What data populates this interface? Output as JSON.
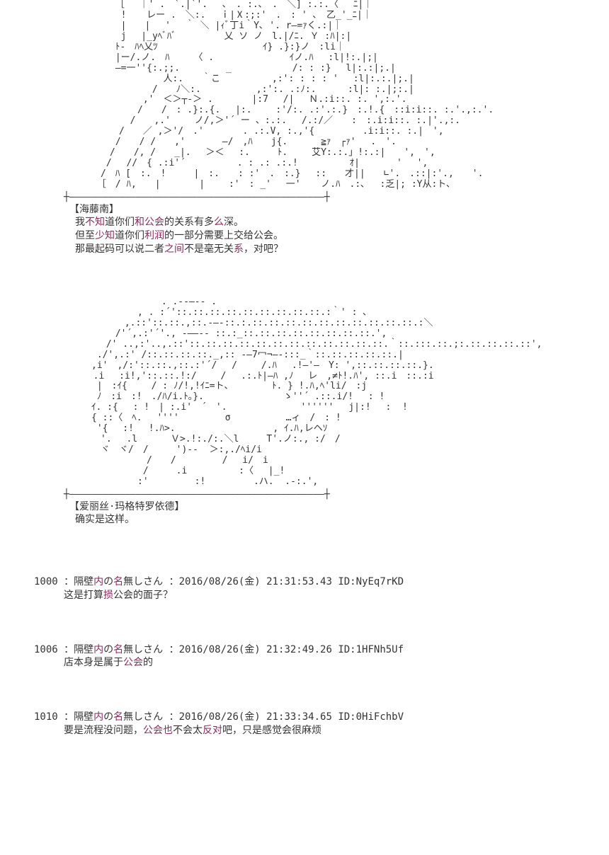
{
  "ascii1": "　　　　　 ［　 ｜' .　`.|`'.　 ､　. :.､　.　＼] :.:.〈　 ﾆ|｜\n　　　　 　 ! 　 レー .　＼:.　 ｉ|Ⅹ:;:'　.　: ' ､　乙_'_ﾆ|｜\n　　 　 　　|　　|　 '　 ｀ ＼ |ｨﾞ丁i｀Y､ '. r―=ｧく.:|｜\n　　　 　　 j 　|_yﾍﾞﾊﾞ　　 　　 乂 ソ ノ　l.|/ﾆ. Ｙ :ﾊ|:|\n　　　　　 ﾄ-　ﾊﾍ乂ﾂ　　　　　　 　 　 　 ｲ} .}:}ノ　:li｜\n　　　　　 |ー/.ノ.　ﾊ　　 〈 .　　　  　　　　ｲノ.ﾊ　 :l|!:.|;|\n　　　　　 ―=一''{:.;;.　　　　　_　　　　　　 /: : :} 　l|:.:|;.|\n　　 　　　　　 　 　人:.　　｀こ　　 　　　,:': : : : '　 :l|:.:.|;.|\n　　　 　　　　　　/　　ﾉ＼:.　　　　　　,:':. .:ﾉ:.　    :l|: :.|;:.|\n　　　　　　　　 ,'　＜＞┬-＞ .　　 　 |:7　 /|　 Ｎ.:i::. :. ',:.'.\n　　　　　　　　/　　/　: .}:.{.　 |:.　　 :'/:. .:'.:.}　:.!.{　::i:i::. :.'.,:.'.\n　 　　　　　 /　　,.' 　　ノ/,＞'´ ー 、:.:.　 /.:/／　　:　:.i:i::. :.|'.,:.\n　　　　　　/　　／ ,＞'/　.'　 　　 . .:.V, :.,'{　　 　　 .i:i::. :.|　',\n　　　　　 /　　/ /　　,'　　　　―/　,ﾊ　　j{.　　　 ≧ｧ　┌ｧ'　 .　'.\n　　　　　/　　/, /　　_|. 　＞＜　 :.　　　ﾄ.　　 艾Y:.:.」!:.:|　　',　',\n　　　　 /　 //　{ .:i'´　　　　　 . : .: .:.!　　　　　 ｵ|　　　　'　 ',\n　　　　/　ﾊ [　:.　!　　　|　:.　　: :'　.　:.}　 ::　　才||　　∟'.　.::|:'.,　　'.\n　　　 ［　/ ﾊ,　　|　 　 　|　　 :'　: _' 　一' 　 ノ.ﾊ　.:､　 :乏|; :Y从:ト､\n",
  "border1": "┼――――――――――――――――――――――――――――――――――――――――――――――┼",
  "speaker1_raw": "【海藤南】",
  "dlg1_line1": "我|不知|道你们|和公会|的关系有多|么|深。",
  "dlg1_line2": "但至|少知|道你们|利润|的一部分需要上交给公会。",
  "dlg1_line3": "那最起码可以说二者|之间|不是毫无关|系|，对吧？",
  "ascii2": "　　　　　　　　　　 . .-‐―‐- .\n　　　　　　　　, . :´'::.::.::.::.::.::.::.::.::.:｀' : ､\n　　　　　 　,.::'::.::.,::.-―-::.:.::.::.::.::.::.::.::.::.::.::.:＼\n　　　　　 /'´,.:'´'., -――‐- ::.:_::.::.::.::.::.::.::.::.',\n　　　　 /' ..,:'..,.::'::.::.::.::.::.::.::.::.::.::.::.::.｀::.:::.::.;:.::.::.::.::',\n　　　 ./',.:' /::.::.::.::._,:: -―7冖¬―-:::_｀::.::.::.::.::.|\n　　　,i'　,/:'::.::.,::.:'´/　 /　　 /.ﾊ　 .!―'―　Y: ',::.::.::.::.}.\n　 　 .i　 :i!,'::.::.!:/　　 /　 .:.ﾄ|―ﾊ ,ﾉ　 レ　,≠ﾄ!.ﾊ', ::.i　::.:i\n　　　 |　:ｲ{ 　　/ : ﾉ/!,!ｲﾆ=ト、  　　　ﾄ. } !.ﾊ,ﾍ'li/　:j\n　　 　ﾉ　:i　:!　./ﾊ/i.ﾄ｡}. 　　　  　 　  ゝ''´ .::.i/!　 : !\n　　　ｲ. :{　 : !　| :.i'　´　'.　　　　　　　　''''''　 j|:! 　:  !\n　　　{ ::〈　ﾍ.　 ''''　　　　　σ　　　　　　…ィ　/　: !\n　　　 '{　 :!　 !.ﾊ>.　　　　　　　　　　 , ｲ.ﾊ,レヘｿ\n　　　　'.　 .l　　　 Ｖ>.!:./:.＼l　　　T'.ノ:., :/　/\n　　　　ヾ　ヾ/　/　　　')‐-  ＞:,./ﾍi/i\n　　　　　　　　　/　　/　　　　　/　 i/　i\n　　　　 　　　　/　　　.i 　　　　　:〈　 |_!\n　　　　　　　　:'　　　　　:!　　　 　 .ハ.  .-:.',\n",
  "border2": "┼――――――――――――――――――――――――――――――――――――――――――――――┼",
  "speaker2_raw": "【爱丽丝·玛格|特|罗|依德|】",
  "dlg2_line1": "确实是这样。",
  "posts": [
    {
      "num": "1000",
      "name": "隔壁|内|の|名|無しさん",
      "date": "2016/08/26(金) 21:31:53.43",
      "pid": "ID:NyEq7rKD",
      "body": "这是打算|损|公会的面子？"
    },
    {
      "num": "1006",
      "name": "隔壁|内|の|名|無しさん",
      "date": "2016/08/26(金) 21:32:49.26",
      "pid": "ID:1HFNh5Uf",
      "body": "店本身是属于|公会|的"
    },
    {
      "num": "1010",
      "name": "隔壁|内|の|名|無しさん",
      "date": "2016/08/26(金) 21:33:34.65",
      "pid": "ID:0HiFchbV",
      "body": "要是流程没问题，|公会也|不会太|反对|吧，只是感觉会很麻烦"
    }
  ],
  "colors": {
    "highlight": "#8b2a5c",
    "text": "#333333",
    "background": "#ffffff"
  },
  "typography": {
    "body_fontsize": 13,
    "post_fontsize": 14
  }
}
